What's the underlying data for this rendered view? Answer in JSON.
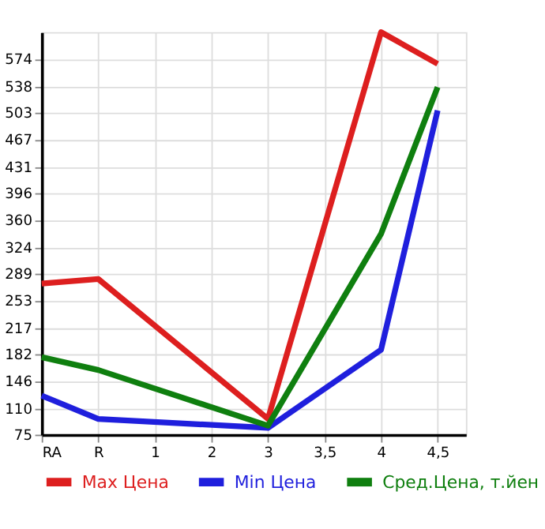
{
  "chart_data": {
    "type": "line",
    "categories": [
      "RA",
      "R",
      "1",
      "2",
      "3",
      "3,5",
      "4",
      "4,5"
    ],
    "series": [
      {
        "name": "Max Цена",
        "color": "#dd1f1f",
        "values": [
          276,
          282,
          null,
          null,
          96,
          null,
          610,
          568
        ]
      },
      {
        "name": "Min Цена",
        "color": "#1f1fdd",
        "values": [
          127,
          96,
          null,
          null,
          84,
          null,
          188,
          506
        ]
      },
      {
        "name": "Сред.Цена, т.йен",
        "color": "#0f7f0f",
        "values": [
          178,
          161,
          null,
          null,
          87,
          null,
          342,
          537
        ]
      }
    ],
    "ylim": [
      75,
      610
    ],
    "yticks": [
      75,
      110,
      146,
      182,
      217,
      253,
      289,
      324,
      360,
      396,
      431,
      467,
      503,
      538,
      574
    ],
    "grid": true,
    "legend": "bottom",
    "marker": "none",
    "line_style": "solid"
  }
}
